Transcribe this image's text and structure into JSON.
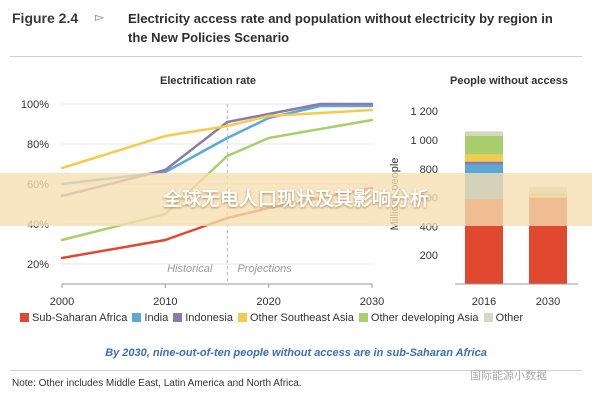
{
  "figure": {
    "label": "Figure 2.4",
    "arrow_icon": "triangle-right-icon",
    "title": "Electricity access rate and population without electricity by region in the New Policies Scenario"
  },
  "colors": {
    "sub_saharan_africa": "#e0492f",
    "india": "#5aa9d6",
    "indonesia": "#8b7ba8",
    "other_southeast_asia": "#f3cb4e",
    "other_developing_asia": "#a8cf6c",
    "other": "#d8d6c2",
    "ssa_light": "#f4a47e",
    "caption": "#3b6fb6"
  },
  "legend": [
    {
      "label": "Sub-Saharan Africa",
      "color": "#e0492f"
    },
    {
      "label": "India",
      "color": "#5aa9d6"
    },
    {
      "label": "Indonesia",
      "color": "#8b7ba8"
    },
    {
      "label": "Other Southeast Asia",
      "color": "#f3cb4e"
    },
    {
      "label": "Other developing Asia",
      "color": "#a8cf6c"
    },
    {
      "label": "Other",
      "color": "#d8d6c2"
    }
  ],
  "chart_data": [
    {
      "type": "line",
      "title": "Electrification rate",
      "xlabel": "",
      "ylabel": "",
      "xlim": [
        2000,
        2030
      ],
      "ylim": [
        10,
        100
      ],
      "x_ticks": [
        "2000",
        "2010",
        "2020",
        "2030"
      ],
      "y_ticks": [
        "20%",
        "40%",
        "60%",
        "80%",
        "100%"
      ],
      "y_tick_values": [
        20,
        40,
        60,
        80,
        100
      ],
      "divider_x": 2016,
      "annotations": {
        "historical": "Historical",
        "projections": "Projections"
      },
      "series": [
        {
          "name": "Sub-Saharan Africa",
          "color": "#e0492f",
          "x": [
            2000,
            2010,
            2016,
            2020,
            2030
          ],
          "y": [
            23,
            32,
            43,
            48,
            58
          ]
        },
        {
          "name": "India",
          "color": "#5aa9d6",
          "x": [
            2000,
            2010,
            2016,
            2020,
            2025,
            2030
          ],
          "y": [
            60,
            66,
            83,
            93,
            99,
            99
          ]
        },
        {
          "name": "Indonesia",
          "color": "#8b7ba8",
          "x": [
            2000,
            2010,
            2016,
            2020,
            2025,
            2030
          ],
          "y": [
            54,
            67,
            91,
            95,
            100,
            100
          ]
        },
        {
          "name": "Other Southeast Asia",
          "color": "#f3cb4e",
          "x": [
            2000,
            2010,
            2016,
            2020,
            2030
          ],
          "y": [
            68,
            84,
            89,
            94,
            97
          ]
        },
        {
          "name": "Other developing Asia",
          "color": "#a8cf6c",
          "x": [
            2000,
            2010,
            2016,
            2020,
            2030
          ],
          "y": [
            32,
            45,
            74,
            83,
            92
          ]
        }
      ]
    },
    {
      "type": "bar",
      "title": "People without access",
      "ylabel": "Millions people",
      "ylim": [
        0,
        1250
      ],
      "y_ticks": [
        "200",
        "400",
        "600",
        "800",
        "1 000",
        "1 200"
      ],
      "y_tick_values": [
        200,
        400,
        600,
        800,
        1000,
        1200
      ],
      "categories": [
        "2016",
        "2030"
      ],
      "series": [
        {
          "name": "Sub-Saharan Africa",
          "color": "#e0492f",
          "values": [
            590,
            600
          ]
        },
        {
          "name": "India",
          "color": "#5aa9d6",
          "values": [
            240,
            0
          ]
        },
        {
          "name": "Indonesia",
          "color": "#8b7ba8",
          "values": [
            20,
            0
          ]
        },
        {
          "name": "Other Southeast Asia",
          "color": "#f3cb4e",
          "values": [
            50,
            10
          ]
        },
        {
          "name": "Other developing Asia",
          "color": "#a8cf6c",
          "values": [
            130,
            15
          ]
        },
        {
          "name": "Other",
          "color": "#d8d6c2",
          "values": [
            30,
            50
          ]
        }
      ]
    }
  ],
  "caption": "By 2030, nine-out-of-ten people without access are in sub-Saharan Africa",
  "note": "Note: Other includes Middle East, Latin America and North Africa.",
  "overlay_text": "全球无电人口现状及其影响分析",
  "watermark": "国际能源小数据"
}
